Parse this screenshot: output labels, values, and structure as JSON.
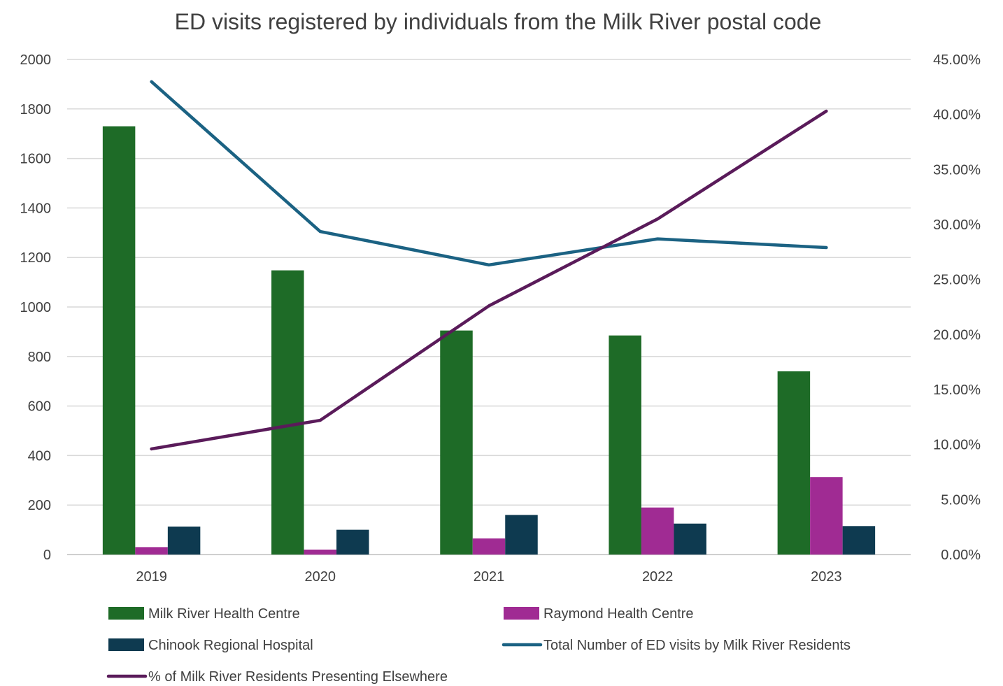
{
  "chart_data": {
    "type": "bar",
    "title": "ED visits registered by individuals from the Milk River postal code",
    "categories": [
      "2019",
      "2020",
      "2021",
      "2022",
      "2023"
    ],
    "y_left": {
      "ylim": [
        0,
        2000
      ],
      "ticks": [
        "0",
        "200",
        "400",
        "600",
        "800",
        "1000",
        "1200",
        "1400",
        "1600",
        "1800",
        "2000"
      ]
    },
    "y_right": {
      "ylim": [
        0,
        0.45
      ],
      "ticks": [
        "0.00%",
        "5.00%",
        "10.00%",
        "15.00%",
        "20.00%",
        "25.00%",
        "30.00%",
        "35.00%",
        "40.00%",
        "45.00%"
      ]
    },
    "grid": true,
    "legend_position": "bottom",
    "series": [
      {
        "name": "Milk River Health Centre",
        "kind": "bar",
        "axis": "left",
        "color": "#1e6b27",
        "values": [
          1730,
          1148,
          905,
          885,
          740
        ]
      },
      {
        "name": "Raymond Health Centre",
        "kind": "bar",
        "axis": "left",
        "color": "#a02b93",
        "values": [
          30,
          20,
          65,
          190,
          313
        ]
      },
      {
        "name": "Chinook Regional Hospital",
        "kind": "bar",
        "axis": "left",
        "color": "#0e3a50",
        "values": [
          113,
          100,
          160,
          125,
          115
        ]
      },
      {
        "name": "Total Number of ED visits by Milk River Residents",
        "kind": "line",
        "axis": "left",
        "color": "#1b6283",
        "values": [
          1910,
          1305,
          1170,
          1275,
          1240
        ]
      },
      {
        "name": "% of Milk River Residents Presenting Elsewhere",
        "kind": "line",
        "axis": "right",
        "color": "#5a1b5a",
        "values": [
          0.096,
          0.122,
          0.226,
          0.305,
          0.403
        ]
      }
    ]
  }
}
